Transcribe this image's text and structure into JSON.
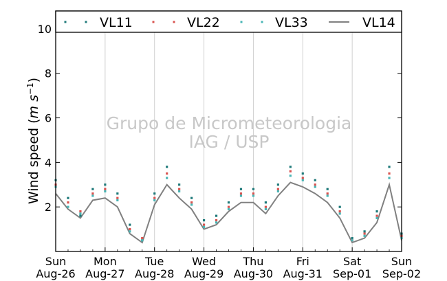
{
  "chart_data": {
    "type": "line",
    "title": "",
    "ylabel": "Wind speed",
    "ylabel_unit_base": "m s",
    "ylabel_unit_exp": "−1",
    "ylabel_prefix": "Wind speed (",
    "ylabel_suffix": ")",
    "ylim": [
      0,
      10.8
    ],
    "yticks": [
      2,
      4,
      6,
      8,
      10
    ],
    "ytick_labels": [
      "2",
      "4",
      "6",
      "8",
      "10"
    ],
    "x_day_labels": [
      {
        "day": "Sun",
        "date": "Aug-26"
      },
      {
        "day": "Mon",
        "date": "Aug-27"
      },
      {
        "day": "Tue",
        "date": "Aug-28"
      },
      {
        "day": "Wed",
        "date": "Aug-29"
      },
      {
        "day": "Thu",
        "date": "Aug-30"
      },
      {
        "day": "Fri",
        "date": "Aug-31"
      },
      {
        "day": "Sat",
        "date": "Sep-01"
      },
      {
        "day": "Sun",
        "date": "Sep-02"
      }
    ],
    "grid": "vertical",
    "legend_position": "top",
    "watermark": [
      "Grupo de Micrometeorologia",
      "IAG / USP"
    ],
    "x_unit": "days since Aug-26 00:00",
    "series": [
      {
        "name": "VL11",
        "style": "markers",
        "color": "#1f7a7a",
        "values": [
          [
            0.0,
            3.2
          ],
          [
            0.25,
            2.4
          ],
          [
            0.5,
            1.6
          ],
          [
            0.75,
            2.8
          ],
          [
            1.0,
            3.0
          ],
          [
            1.25,
            2.6
          ],
          [
            1.5,
            1.2
          ],
          [
            1.75,
            0.5
          ],
          [
            2.0,
            2.6
          ],
          [
            2.25,
            3.8
          ],
          [
            2.5,
            3.0
          ],
          [
            2.75,
            2.4
          ],
          [
            3.0,
            1.4
          ],
          [
            3.25,
            1.6
          ],
          [
            3.5,
            2.2
          ],
          [
            3.75,
            2.8
          ],
          [
            4.0,
            2.8
          ],
          [
            4.25,
            2.2
          ],
          [
            4.5,
            3.0
          ],
          [
            4.75,
            3.8
          ],
          [
            5.0,
            3.5
          ],
          [
            5.25,
            3.2
          ],
          [
            5.5,
            2.8
          ],
          [
            5.75,
            2.0
          ],
          [
            6.0,
            0.6
          ],
          [
            6.25,
            0.9
          ],
          [
            6.5,
            1.8
          ],
          [
            6.75,
            3.8
          ],
          [
            7.0,
            0.8
          ]
        ]
      },
      {
        "name": "VL22",
        "style": "markers",
        "color": "#d9534f",
        "values": [
          [
            0.0,
            3.0
          ],
          [
            0.25,
            2.2
          ],
          [
            0.5,
            1.8
          ],
          [
            0.75,
            2.6
          ],
          [
            1.0,
            2.8
          ],
          [
            1.25,
            2.4
          ],
          [
            1.5,
            1.0
          ],
          [
            1.75,
            0.6
          ],
          [
            2.0,
            2.4
          ],
          [
            2.25,
            3.5
          ],
          [
            2.5,
            2.8
          ],
          [
            2.75,
            2.2
          ],
          [
            3.0,
            1.2
          ],
          [
            3.25,
            1.4
          ],
          [
            3.5,
            2.0
          ],
          [
            3.75,
            2.6
          ],
          [
            4.0,
            2.6
          ],
          [
            4.25,
            2.0
          ],
          [
            4.5,
            2.8
          ],
          [
            4.75,
            3.6
          ],
          [
            5.0,
            3.3
          ],
          [
            5.25,
            3.0
          ],
          [
            5.5,
            2.6
          ],
          [
            5.75,
            1.8
          ],
          [
            6.0,
            0.5
          ],
          [
            6.25,
            0.8
          ],
          [
            6.5,
            1.6
          ],
          [
            6.75,
            3.5
          ],
          [
            7.0,
            0.7
          ]
        ]
      },
      {
        "name": "VL33",
        "style": "markers",
        "color": "#48b5b5",
        "values": [
          [
            0.0,
            2.9
          ],
          [
            0.25,
            2.0
          ],
          [
            0.5,
            1.7
          ],
          [
            0.75,
            2.5
          ],
          [
            1.0,
            2.7
          ],
          [
            1.25,
            2.3
          ],
          [
            1.5,
            0.9
          ],
          [
            1.75,
            0.5
          ],
          [
            2.0,
            2.3
          ],
          [
            2.25,
            3.3
          ],
          [
            2.5,
            2.7
          ],
          [
            2.75,
            2.1
          ],
          [
            3.0,
            1.1
          ],
          [
            3.25,
            1.3
          ],
          [
            3.5,
            1.9
          ],
          [
            3.75,
            2.5
          ],
          [
            4.0,
            2.5
          ],
          [
            4.25,
            1.9
          ],
          [
            4.5,
            2.7
          ],
          [
            4.75,
            3.4
          ],
          [
            5.0,
            3.2
          ],
          [
            5.25,
            2.9
          ],
          [
            5.5,
            2.5
          ],
          [
            5.75,
            1.7
          ],
          [
            6.0,
            0.5
          ],
          [
            6.25,
            0.7
          ],
          [
            6.5,
            1.5
          ],
          [
            6.75,
            3.3
          ],
          [
            7.0,
            0.6
          ]
        ]
      },
      {
        "name": "VL14",
        "style": "line",
        "color": "#808080",
        "values": [
          [
            0.0,
            2.6
          ],
          [
            0.25,
            1.9
          ],
          [
            0.5,
            1.5
          ],
          [
            0.75,
            2.3
          ],
          [
            1.0,
            2.4
          ],
          [
            1.25,
            2.0
          ],
          [
            1.5,
            0.8
          ],
          [
            1.75,
            0.4
          ],
          [
            2.0,
            2.1
          ],
          [
            2.25,
            3.0
          ],
          [
            2.5,
            2.4
          ],
          [
            2.75,
            1.9
          ],
          [
            3.0,
            1.0
          ],
          [
            3.25,
            1.2
          ],
          [
            3.5,
            1.8
          ],
          [
            3.75,
            2.2
          ],
          [
            4.0,
            2.2
          ],
          [
            4.25,
            1.7
          ],
          [
            4.5,
            2.5
          ],
          [
            4.75,
            3.1
          ],
          [
            5.0,
            2.9
          ],
          [
            5.25,
            2.6
          ],
          [
            5.5,
            2.2
          ],
          [
            5.75,
            1.5
          ],
          [
            6.0,
            0.4
          ],
          [
            6.25,
            0.6
          ],
          [
            6.5,
            1.3
          ],
          [
            6.75,
            3.0
          ],
          [
            7.0,
            0.5
          ]
        ]
      }
    ]
  }
}
